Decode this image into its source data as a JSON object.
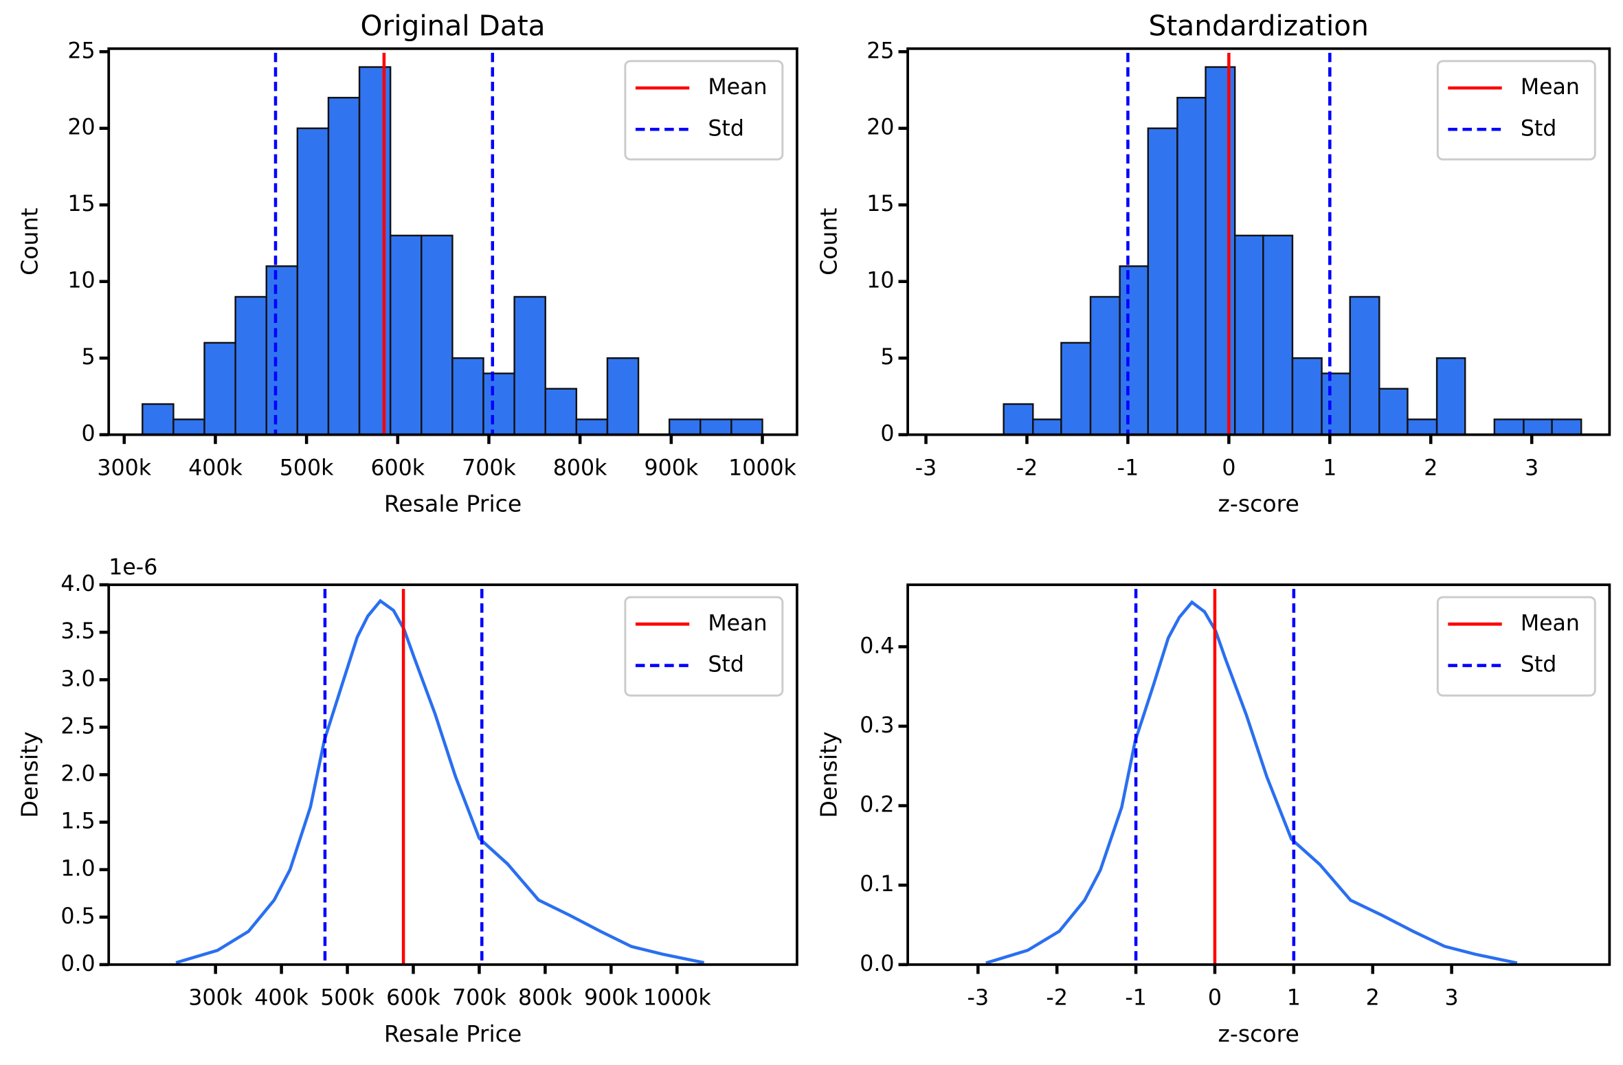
{
  "chart_data": [
    {
      "type": "histogram",
      "title": "Original Data",
      "x_label": "Resale Price",
      "y_label": "Count",
      "bins": [
        320000,
        354000,
        388000,
        422000,
        456000,
        490000,
        524000,
        558000,
        592000,
        626000,
        660000,
        694000,
        728000,
        762000,
        796000,
        830000,
        864000,
        898000,
        932000,
        966000,
        1000000
      ],
      "values": [
        2,
        1,
        6,
        9,
        11,
        20,
        22,
        24,
        13,
        13,
        5,
        4,
        9,
        3,
        1,
        5,
        0,
        1,
        1,
        1
      ],
      "color": "#3174f0",
      "xlim": [
        283000,
        1038000
      ],
      "ylim": [
        0,
        25.2
      ],
      "xticks": [
        {
          "value": 300000,
          "label": "300k"
        },
        {
          "value": 400000,
          "label": "400k"
        },
        {
          "value": 500000,
          "label": "500k"
        },
        {
          "value": 600000,
          "label": "600k"
        },
        {
          "value": 700000,
          "label": "700k"
        },
        {
          "value": 800000,
          "label": "800k"
        },
        {
          "value": 900000,
          "label": "900k"
        },
        {
          "value": 1000000,
          "label": "1000k"
        }
      ],
      "yticks": [
        0,
        5,
        10,
        15,
        20,
        25
      ],
      "vlines": [
        {
          "name": "Mean",
          "color": "#ff0000",
          "dash": false,
          "values": [
            585000
          ]
        },
        {
          "name": "Std",
          "color": "#0000ff",
          "dash": true,
          "values": [
            466000,
            704000
          ]
        }
      ],
      "legend": "upper right",
      "grid": false
    },
    {
      "type": "histogram",
      "title": "Standardization",
      "x_label": "z-score",
      "y_label": "Count",
      "bins": [
        -2.23,
        -1.94,
        -1.66,
        -1.37,
        -1.08,
        -0.8,
        -0.51,
        -0.23,
        0.06,
        0.34,
        0.63,
        0.92,
        1.2,
        1.49,
        1.77,
        2.06,
        2.34,
        2.63,
        2.92,
        3.2,
        3.49
      ],
      "values": [
        2,
        1,
        6,
        9,
        11,
        20,
        22,
        24,
        13,
        13,
        5,
        4,
        9,
        3,
        1,
        5,
        0,
        1,
        1,
        1
      ],
      "color": "#3174f0",
      "xlim": [
        -3.18,
        3.77
      ],
      "ylim": [
        0,
        25.2
      ],
      "xticks": [
        -3,
        -2,
        -1,
        0,
        1,
        2,
        3
      ],
      "yticks": [
        0,
        5,
        10,
        15,
        20,
        25
      ],
      "vlines": [
        {
          "name": "Mean",
          "color": "#ff0000",
          "dash": false,
          "values": [
            0
          ]
        },
        {
          "name": "Std",
          "color": "#0000ff",
          "dash": true,
          "values": [
            -1,
            1
          ]
        }
      ],
      "legend": "upper right",
      "grid": false
    },
    {
      "type": "line",
      "x_label": "Resale Price",
      "y_label": "Density",
      "y_offset": "1e-6",
      "x": [
        240000,
        303000,
        350000,
        389000,
        413000,
        444000,
        465000,
        492000,
        515000,
        531000,
        550000,
        570000,
        586000,
        601000,
        633000,
        664000,
        700000,
        743000,
        790000,
        837000,
        884000,
        931000,
        978000,
        1041000
      ],
      "values": [
        0.02,
        0.15,
        0.35,
        0.68,
        1.0,
        1.66,
        2.36,
        2.95,
        3.45,
        3.67,
        3.83,
        3.73,
        3.53,
        3.24,
        2.64,
        1.98,
        1.33,
        1.06,
        0.68,
        0.52,
        0.35,
        0.19,
        0.11,
        0.02
      ],
      "color": "#2a6ff0",
      "xlim": [
        138000,
        1182000
      ],
      "ylim": [
        0,
        4.0
      ],
      "xticks": [
        {
          "value": 300000,
          "label": "300k"
        },
        {
          "value": 400000,
          "label": "400k"
        },
        {
          "value": 500000,
          "label": "500k"
        },
        {
          "value": 600000,
          "label": "600k"
        },
        {
          "value": 700000,
          "label": "700k"
        },
        {
          "value": 800000,
          "label": "800k"
        },
        {
          "value": 900000,
          "label": "900k"
        },
        {
          "value": 1000000,
          "label": "1000k"
        }
      ],
      "yticks": [
        {
          "value": 0,
          "label": "0.0"
        },
        0.5,
        {
          "value": 1,
          "label": "1.0"
        },
        1.5,
        {
          "value": 2,
          "label": "2.0"
        },
        2.5,
        {
          "value": 3,
          "label": "3.0"
        },
        3.5,
        {
          "value": 4,
          "label": "4.0"
        }
      ],
      "vlines": [
        {
          "name": "Mean",
          "color": "#ff0000",
          "dash": false,
          "values": [
            585000
          ]
        },
        {
          "name": "Std",
          "color": "#0000ff",
          "dash": true,
          "values": [
            466000,
            704000
          ]
        }
      ],
      "legend": "upper right",
      "grid": false
    },
    {
      "type": "line",
      "x_label": "z-score",
      "y_label": "Density",
      "x": [
        -2.9,
        -2.37,
        -1.97,
        -1.65,
        -1.45,
        -1.18,
        -1.01,
        -0.78,
        -0.59,
        -0.45,
        -0.29,
        -0.13,
        0.01,
        0.13,
        0.4,
        0.66,
        0.97,
        1.33,
        1.72,
        2.12,
        2.51,
        2.91,
        3.3,
        3.83
      ],
      "values": [
        0.002,
        0.018,
        0.042,
        0.081,
        0.119,
        0.198,
        0.281,
        0.351,
        0.411,
        0.437,
        0.456,
        0.444,
        0.42,
        0.386,
        0.314,
        0.236,
        0.158,
        0.126,
        0.081,
        0.062,
        0.042,
        0.023,
        0.013,
        0.002
      ],
      "color": "#2a6ff0",
      "xlim": [
        -3.89,
        5.0
      ],
      "ylim": [
        0,
        0.478
      ],
      "xticks": [
        -3,
        -2,
        -1,
        0,
        1,
        2,
        3
      ],
      "yticks": [
        {
          "value": 0,
          "label": "0.0"
        },
        0.1,
        0.2,
        0.3,
        0.4
      ],
      "vlines": [
        {
          "name": "Mean",
          "color": "#ff0000",
          "dash": false,
          "values": [
            0
          ]
        },
        {
          "name": "Std",
          "color": "#0000ff",
          "dash": true,
          "values": [
            -1,
            1
          ]
        }
      ],
      "legend": "upper right",
      "grid": false
    }
  ]
}
